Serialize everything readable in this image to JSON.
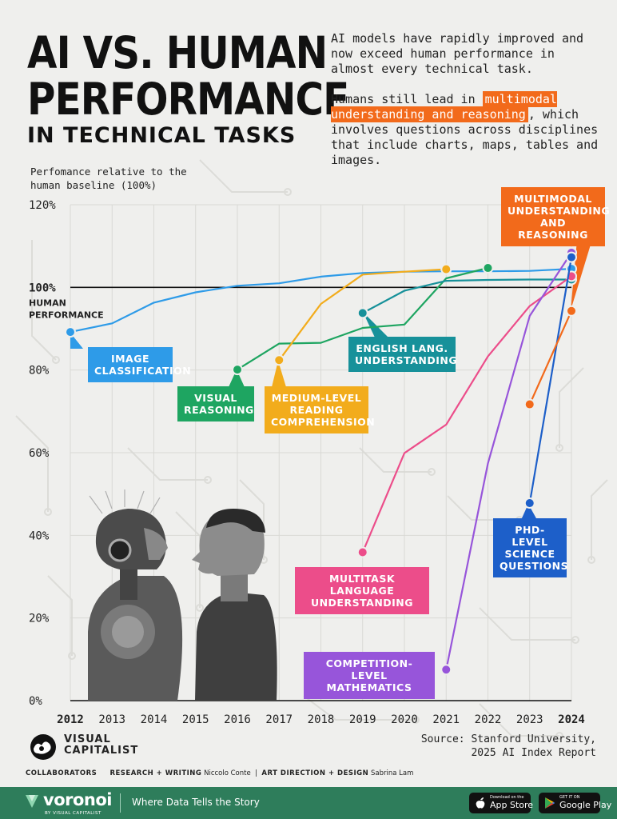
{
  "header": {
    "title_line1": "AI VS. HUMAN",
    "title_line2": "PERFORMANCE",
    "title_line3": "IN TECHNICAL TASKS",
    "intro1": "AI models have rapidly improved and now exceed human performance in almost every technical task.",
    "intro2_pre": "Humans still lead in ",
    "intro2_highlight": "multimodal understanding and reasoning",
    "intro2_post": ", which involves questions across disciplines that include charts, maps, tables and images."
  },
  "chart_data": {
    "type": "line",
    "ylabel": "Perfomance relative to the human baseline (100%)",
    "x": [
      2012,
      2013,
      2014,
      2015,
      2016,
      2017,
      2018,
      2019,
      2020,
      2021,
      2022,
      2023,
      2024
    ],
    "ylim": [
      0,
      120
    ],
    "yticks": [
      "0%",
      "20%",
      "40%",
      "60%",
      "80%",
      "100%",
      "120%"
    ],
    "baseline": {
      "value": 100,
      "label_line1": "HUMAN",
      "label_line2": "PERFORMANCE"
    },
    "grid": true,
    "series": [
      {
        "name": "IMAGE CLASSIFICATION",
        "color": "#2e9be8",
        "points": [
          [
            2012,
            89.2
          ],
          [
            2013,
            91.3
          ],
          [
            2014,
            96.3
          ],
          [
            2015,
            98.8
          ],
          [
            2016,
            100.4
          ],
          [
            2017,
            101
          ],
          [
            2018,
            102.6
          ],
          [
            2019,
            103.5
          ],
          [
            2020,
            103.8
          ],
          [
            2021,
            103.9
          ],
          [
            2022,
            103.9
          ],
          [
            2023,
            104
          ],
          [
            2024,
            104.5
          ]
        ]
      },
      {
        "name": "VISUAL REASONING",
        "color": "#1ea561",
        "points": [
          [
            2016,
            80.1
          ],
          [
            2017,
            86.4
          ],
          [
            2018,
            86.6
          ],
          [
            2019,
            90.2
          ],
          [
            2020,
            91
          ],
          [
            2021,
            102.2
          ],
          [
            2022,
            104.7
          ]
        ]
      },
      {
        "name": "MEDIUM-LEVEL READING COMPREHENSION",
        "color": "#f2ac1c",
        "points": [
          [
            2017,
            82.4
          ],
          [
            2018,
            96
          ],
          [
            2019,
            103.1
          ],
          [
            2020,
            103.8
          ],
          [
            2021,
            104.4
          ]
        ]
      },
      {
        "name": "ENGLISH LANG. UNDERSTANDING",
        "color": "#17919a",
        "points": [
          [
            2019,
            93.8
          ],
          [
            2020,
            99.2
          ],
          [
            2021,
            101.6
          ],
          [
            2022,
            101.8
          ],
          [
            2023,
            101.9
          ],
          [
            2024,
            101.9
          ]
        ]
      },
      {
        "name": "MULTITASK LANGUAGE UNDERSTANDING",
        "color": "#ec4d8a",
        "points": [
          [
            2019,
            35.9
          ],
          [
            2020,
            59.9
          ],
          [
            2021,
            66.8
          ],
          [
            2022,
            83.3
          ],
          [
            2023,
            95.5
          ],
          [
            2024,
            102.7
          ]
        ]
      },
      {
        "name": "COMPETITION-LEVEL MATHEMATICS",
        "color": "#9755da",
        "points": [
          [
            2021,
            7.5
          ],
          [
            2022,
            57.4
          ],
          [
            2023,
            93.1
          ],
          [
            2024,
            108.4
          ]
        ]
      },
      {
        "name": "PHD-LEVEL SCIENCE QUESTIONS",
        "color": "#1d5fc9",
        "points": [
          [
            2023,
            47.8
          ],
          [
            2024,
            107.3
          ]
        ]
      },
      {
        "name": "MULTIMODAL UNDERSTANDING AND REASONING",
        "color": "#f26a1b",
        "points": [
          [
            2023,
            71.7
          ],
          [
            2024,
            94.3
          ]
        ]
      }
    ]
  },
  "callouts": {
    "image_classification": "IMAGE CLASSIFICATION",
    "visual_reasoning": "VISUAL REASONING",
    "reading_comprehension": "MEDIUM-LEVEL READING COMPREHENSION",
    "english_understanding": "ENGLISH LANG. UNDERSTANDING",
    "multitask_language": "MULTITASK LANGUAGE UNDERSTANDING",
    "competition_math": "COMPETITION-LEVEL MATHEMATICS",
    "phd_science": "PHD-LEVEL SCIENCE QUESTIONS",
    "multimodal": "MULTIMODAL UNDERSTANDING AND REASONING"
  },
  "branding": {
    "logo_line1": "VISUAL",
    "logo_line2": "CAPITALIST",
    "source_line1": "Source: Stanford University,",
    "source_line2": "2025 AI Index Report",
    "collab_label": "COLLABORATORS",
    "research_label": "RESEARCH + WRITING",
    "research_name": "Niccolo Conte",
    "art_label": "ART DIRECTION + DESIGN",
    "art_name": "Sabrina Lam"
  },
  "footer": {
    "brand": "voronoi",
    "brand_sub": "BY VISUAL CAPITALIST",
    "tagline": "Where Data Tells the Story",
    "appstore_small": "Download on the",
    "appstore_big": "App Store",
    "gplay_small": "GET IT ON",
    "gplay_big": "Google Play",
    "bg_color": "#2e7d5b"
  }
}
